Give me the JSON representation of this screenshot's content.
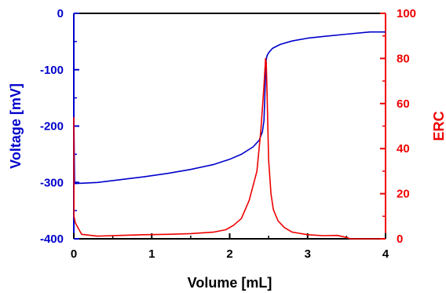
{
  "chart_data": {
    "type": "line",
    "xlabel": "Volume [mL]",
    "ylabel_left": "Voltage [mV]",
    "ylabel_right": "ERC",
    "xlim": [
      0,
      4
    ],
    "ylim_left": [
      -400,
      0
    ],
    "ylim_right": [
      0,
      100
    ],
    "x_ticks": [
      "0",
      "1",
      "2",
      "3",
      "4"
    ],
    "y_left_ticks": [
      "0",
      "-100",
      "-200",
      "-300",
      "-400"
    ],
    "y_right_ticks": [
      "100",
      "80",
      "60",
      "40",
      "20",
      "0"
    ],
    "grid": false,
    "colors": {
      "voltage": "#0000cc",
      "erc": "#ee0000",
      "axis": "#000000"
    },
    "series": [
      {
        "axis": "left",
        "color": "#0000cc",
        "x": [
          0,
          0.002,
          0.01,
          0.3,
          0.6,
          0.9,
          1.2,
          1.5,
          1.8,
          2.0,
          2.15,
          2.3,
          2.38,
          2.42,
          2.44,
          2.45,
          2.46,
          2.47,
          2.48,
          2.5,
          2.55,
          2.65,
          2.8,
          3.0,
          3.2,
          3.5,
          3.8,
          4.0
        ],
        "y": [
          -10,
          -200,
          -302,
          -300,
          -295,
          -290,
          -284,
          -277,
          -268,
          -259,
          -250,
          -237,
          -225,
          -210,
          -190,
          -150,
          -110,
          -82,
          -75,
          -70,
          -62,
          -55,
          -49,
          -44,
          -41,
          -37,
          -33,
          -33
        ]
      },
      {
        "axis": "right",
        "color": "#ee0000",
        "x": [
          0,
          0.002,
          0.02,
          0.1,
          0.3,
          0.6,
          0.9,
          1.2,
          1.5,
          1.8,
          1.95,
          2.05,
          2.15,
          2.25,
          2.35,
          2.4,
          2.44,
          2.46,
          2.47,
          2.48,
          2.5,
          2.53,
          2.56,
          2.62,
          2.7,
          2.8,
          3.0,
          3.2,
          3.38,
          3.5,
          3.55,
          3.7,
          4.0
        ],
        "y": [
          54,
          10,
          7,
          2,
          1.2,
          1.5,
          1.8,
          2,
          2.3,
          3,
          4,
          6,
          9,
          17,
          30,
          48,
          68,
          80,
          78,
          65,
          35,
          20,
          13,
          8,
          5,
          3,
          1.8,
          1.4,
          1.5,
          0.6,
          0,
          0,
          0
        ]
      }
    ]
  }
}
